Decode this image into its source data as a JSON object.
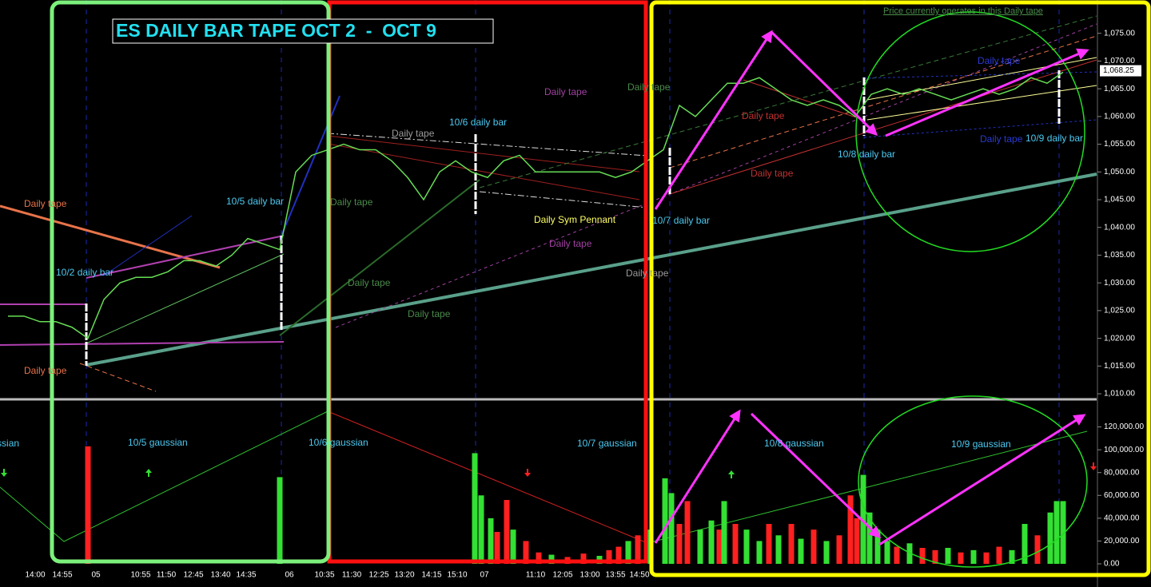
{
  "chart_data": [
    {
      "type": "line",
      "title": "ES DAILY BAR TAPE OCT 2  -  OCT 9",
      "x": [
        0,
        1,
        2,
        3,
        4,
        5,
        6,
        7,
        8,
        9,
        10,
        11,
        12,
        13,
        14,
        15,
        16,
        17,
        18,
        19,
        20,
        21,
        22,
        23,
        24,
        25,
        26,
        27,
        28,
        29,
        30,
        31,
        32,
        33,
        34,
        35,
        36,
        37,
        38,
        39,
        40,
        41,
        42,
        43,
        44,
        45,
        46,
        47,
        48,
        49,
        50,
        51,
        52,
        53,
        54,
        55,
        56,
        57,
        58,
        59,
        60,
        61,
        62,
        63,
        64,
        65,
        66,
        67,
        68
      ],
      "values": [
        1024,
        1024,
        1023,
        1023,
        1022,
        1020,
        1027,
        1030,
        1031,
        1031,
        1032,
        1034,
        1034,
        1033,
        1035,
        1038,
        1037,
        1036,
        1050,
        1053,
        1054,
        1055,
        1054,
        1054,
        1052,
        1049,
        1045,
        1050,
        1052,
        1050,
        1049,
        1052,
        1053,
        1050,
        1050,
        1050,
        1050,
        1050,
        1049,
        1050,
        1052,
        1054,
        1062,
        1060,
        1063,
        1066,
        1066,
        1067,
        1065,
        1063,
        1062,
        1063,
        1062,
        1060,
        1064,
        1065,
        1064,
        1065,
        1064,
        1063,
        1064,
        1065,
        1064,
        1065,
        1067,
        1066,
        1068,
        null,
        null
      ],
      "color": "#66dd55",
      "xlim": [
        -0.5,
        68.5
      ],
      "ylim": [
        1009,
        1080
      ],
      "xticks": [
        {
          "value": 1.7,
          "label": "14:00"
        },
        {
          "value": 3.4,
          "label": "14:55"
        },
        {
          "value": 5.5,
          "label": "05"
        },
        {
          "value": 8.3,
          "label": "10:55"
        },
        {
          "value": 9.9,
          "label": "11:50"
        },
        {
          "value": 11.6,
          "label": "12:45"
        },
        {
          "value": 13.3,
          "label": "13:40"
        },
        {
          "value": 14.9,
          "label": "14:35"
        },
        {
          "value": 17.6,
          "label": "06"
        },
        {
          "value": 19.8,
          "label": "10:35"
        },
        {
          "value": 21.5,
          "label": "11:30"
        },
        {
          "value": 23.2,
          "label": "12:25"
        },
        {
          "value": 24.8,
          "label": "13:20"
        },
        {
          "value": 26.5,
          "label": "14:15"
        },
        {
          "value": 28.1,
          "label": "15:10"
        },
        {
          "value": 29.8,
          "label": "07"
        },
        {
          "value": 33,
          "label": "11:10"
        },
        {
          "value": 34.7,
          "label": "12:05"
        },
        {
          "value": 36.4,
          "label": "13:00"
        },
        {
          "value": 38,
          "label": "13:55"
        },
        {
          "value": 39.5,
          "label": "14:50"
        }
      ],
      "yticks": [
        {
          "value": 1010,
          "label": "1,010.00"
        },
        {
          "value": 1015,
          "label": "1,015.00"
        },
        {
          "value": 1020,
          "label": "1,020.00"
        },
        {
          "value": 1025,
          "label": "1,025.00"
        },
        {
          "value": 1030,
          "label": "1,030.00"
        },
        {
          "value": 1035,
          "label": "1,035.00"
        },
        {
          "value": 1040,
          "label": "1,040.00"
        },
        {
          "value": 1045,
          "label": "1,045.00"
        },
        {
          "value": 1050,
          "label": "1,050.00"
        },
        {
          "value": 1055,
          "label": "1,055.00"
        },
        {
          "value": 1060,
          "label": "1,060.00"
        },
        {
          "value": 1065,
          "label": "1,065.00"
        },
        {
          "value": 1070,
          "label": "1,070.00"
        },
        {
          "value": 1075,
          "label": "1,075.00"
        }
      ],
      "last_price": {
        "value": 1068.25,
        "label": "1,068.25"
      },
      "annotations": [
        "Daily tape",
        "Daily tape",
        "10/2 daily bar",
        "10/5 daily bar",
        "Daily tape",
        "Daily tape",
        "10/6 daily bar",
        "Daily tape",
        "Daily tape",
        "Daily Sym Pennant",
        "Daily tape",
        "Daily tape",
        "Daily tape",
        "Daily tape",
        "10/7 daily bar",
        "Daily tape",
        "Daily tape",
        "10/8 daily bar",
        "Daily tape",
        "Daily tape",
        "10/9 daily bar",
        "Price currently operates in this Daily tape"
      ]
    },
    {
      "type": "bar",
      "x": [
        5,
        17,
        29.2,
        29.6,
        30.2,
        30.6,
        31.2,
        31.6,
        32.4,
        33.2,
        34,
        35,
        36,
        37,
        37.6,
        38.2,
        38.8,
        39.4,
        40.2,
        41.1,
        41.5,
        42,
        42.5,
        43.3,
        44,
        44.5,
        44.8,
        45.5,
        46.2,
        47,
        47.6,
        48.2,
        49,
        49.6,
        50.4,
        51.2,
        52,
        52.7,
        53.1,
        53.5,
        53.9,
        54.4,
        55,
        55.6,
        56.4,
        57.2,
        58,
        58.8,
        59.6,
        60.4,
        61.2,
        62,
        62.8,
        63.6,
        64.4,
        65.2,
        65.6,
        66
      ],
      "values": [
        103000,
        76000,
        97000,
        60000,
        40000,
        28000,
        56000,
        30000,
        20000,
        10000,
        8000,
        6000,
        9000,
        7000,
        12000,
        15000,
        20000,
        25000,
        30000,
        75000,
        62000,
        35000,
        55000,
        30000,
        38000,
        30000,
        55000,
        35000,
        30000,
        20000,
        35000,
        25000,
        35000,
        22000,
        30000,
        20000,
        25000,
        60000,
        40000,
        78000,
        45000,
        30000,
        20000,
        15000,
        18000,
        14000,
        12000,
        14000,
        10000,
        12000,
        10000,
        15000,
        12000,
        35000,
        25000,
        45000,
        55000,
        55000
      ],
      "colors": [
        "#ff2020",
        "#33e033",
        "#33e033",
        "#33e033",
        "#33e033",
        "#ff2020",
        "#ff2020",
        "#33e033",
        "#ff2020",
        "#ff2020",
        "#33e033",
        "#ff2020",
        "#ff2020",
        "#33e033",
        "#ff2020",
        "#ff2020",
        "#33e033",
        "#ff2020",
        "#33e033",
        "#33e033",
        "#33e033",
        "#ff2020",
        "#ff2020",
        "#33e033",
        "#33e033",
        "#ff2020",
        "#33e033",
        "#ff2020",
        "#33e033",
        "#33e033",
        "#ff2020",
        "#33e033",
        "#ff2020",
        "#33e033",
        "#ff2020",
        "#33e033",
        "#ff2020",
        "#ff2020",
        "#ff2020",
        "#33e033",
        "#33e033",
        "#33e033",
        "#33e033",
        "#ff2020",
        "#33e033",
        "#ff2020",
        "#ff2020",
        "#33e033",
        "#ff2020",
        "#33e033",
        "#ff2020",
        "#ff2020",
        "#33e033",
        "#33e033",
        "#ff2020",
        "#33e033",
        "#33e033",
        "#33e033"
      ],
      "xlim": [
        -0.5,
        68.5
      ],
      "ylim": [
        0,
        140000
      ],
      "yticks": [
        {
          "value": 0,
          "label": "0.00"
        },
        {
          "value": 20000,
          "label": "20,000.00"
        },
        {
          "value": 40000,
          "label": "40,000.00"
        },
        {
          "value": 60000,
          "label": "60,000.00"
        },
        {
          "value": 80000,
          "label": "80,000.00"
        },
        {
          "value": 100000,
          "label": "100,000.00"
        },
        {
          "value": 120000,
          "label": "120,000.00"
        }
      ],
      "annotations": [
        "gaussian",
        "10/5 gaussian",
        "10/6 gaussian",
        "10/7 gaussian",
        "10/8 gaussian",
        "10/9 gaussian"
      ]
    }
  ]
}
